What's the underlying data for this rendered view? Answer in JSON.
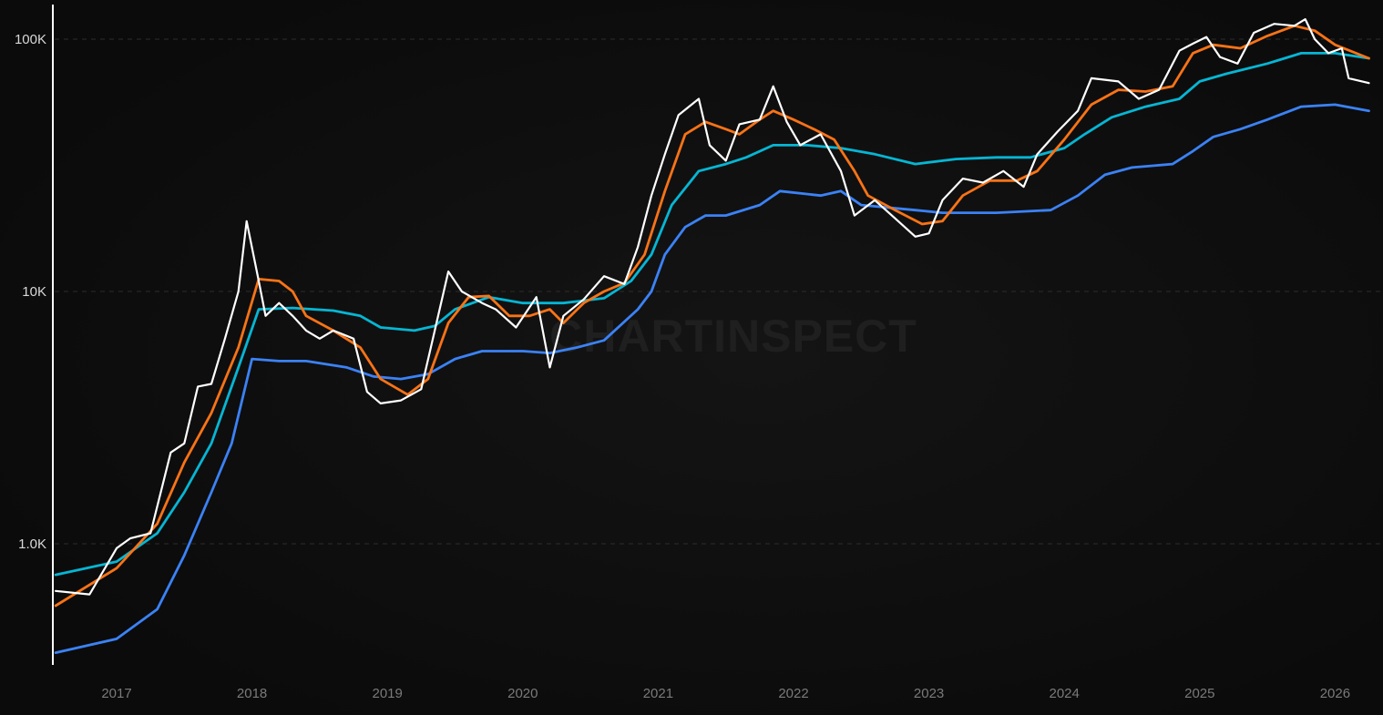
{
  "watermark": "CHARTINSPECT",
  "chart_data": {
    "type": "line",
    "title": "",
    "xlabel": "",
    "ylabel": "",
    "y_scale": "log",
    "ylim": [
      330,
      137000
    ],
    "xlim": [
      2016.53,
      2026.25
    ],
    "grid": "horizontal dashed at y ticks",
    "legend": "none",
    "y_ticks": [
      {
        "value": 1000,
        "label": "1.0K"
      },
      {
        "value": 10000,
        "label": "10K"
      },
      {
        "value": 100000,
        "label": "100K"
      }
    ],
    "x_ticks": [
      {
        "value": 2017,
        "label": "2017"
      },
      {
        "value": 2018,
        "label": "2018"
      },
      {
        "value": 2019,
        "label": "2019"
      },
      {
        "value": 2020,
        "label": "2020"
      },
      {
        "value": 2021,
        "label": "2021"
      },
      {
        "value": 2022,
        "label": "2022"
      },
      {
        "value": 2023,
        "label": "2023"
      },
      {
        "value": 2024,
        "label": "2024"
      },
      {
        "value": 2025,
        "label": "2025"
      },
      {
        "value": 2026,
        "label": "2026"
      }
    ],
    "series": [
      {
        "color": "#3b82f6",
        "points": [
          [
            2016.55,
            370
          ],
          [
            2017.0,
            420
          ],
          [
            2017.3,
            550
          ],
          [
            2017.5,
            900
          ],
          [
            2017.7,
            1600
          ],
          [
            2017.85,
            2500
          ],
          [
            2018.0,
            5400
          ],
          [
            2018.2,
            5300
          ],
          [
            2018.4,
            5300
          ],
          [
            2018.7,
            5000
          ],
          [
            2018.9,
            4600
          ],
          [
            2019.1,
            4500
          ],
          [
            2019.3,
            4700
          ],
          [
            2019.5,
            5400
          ],
          [
            2019.7,
            5800
          ],
          [
            2020.0,
            5800
          ],
          [
            2020.2,
            5700
          ],
          [
            2020.4,
            6000
          ],
          [
            2020.6,
            6400
          ],
          [
            2020.85,
            8500
          ],
          [
            2020.95,
            10000
          ],
          [
            2021.05,
            14000
          ],
          [
            2021.2,
            18000
          ],
          [
            2021.35,
            20000
          ],
          [
            2021.5,
            20000
          ],
          [
            2021.75,
            22000
          ],
          [
            2021.9,
            25000
          ],
          [
            2022.2,
            24000
          ],
          [
            2022.35,
            25000
          ],
          [
            2022.5,
            22000
          ],
          [
            2022.9,
            21000
          ],
          [
            2023.1,
            20500
          ],
          [
            2023.5,
            20500
          ],
          [
            2023.9,
            21000
          ],
          [
            2024.1,
            24000
          ],
          [
            2024.3,
            29000
          ],
          [
            2024.5,
            31000
          ],
          [
            2024.8,
            32000
          ],
          [
            2024.95,
            36000
          ],
          [
            2025.1,
            41000
          ],
          [
            2025.3,
            44000
          ],
          [
            2025.5,
            48000
          ],
          [
            2025.75,
            54000
          ],
          [
            2026.0,
            55000
          ],
          [
            2026.25,
            52000
          ]
        ]
      },
      {
        "color": "#06b6d4",
        "points": [
          [
            2016.55,
            753
          ],
          [
            2017.0,
            850
          ],
          [
            2017.3,
            1100
          ],
          [
            2017.5,
            1600
          ],
          [
            2017.7,
            2500
          ],
          [
            2017.9,
            5000
          ],
          [
            2018.05,
            8500
          ],
          [
            2018.3,
            8600
          ],
          [
            2018.6,
            8400
          ],
          [
            2018.8,
            8000
          ],
          [
            2018.95,
            7200
          ],
          [
            2019.2,
            7000
          ],
          [
            2019.35,
            7300
          ],
          [
            2019.5,
            8500
          ],
          [
            2019.75,
            9500
          ],
          [
            2020.0,
            9000
          ],
          [
            2020.3,
            9000
          ],
          [
            2020.6,
            9400
          ],
          [
            2020.8,
            11000
          ],
          [
            2020.95,
            14000
          ],
          [
            2021.1,
            22000
          ],
          [
            2021.3,
            30000
          ],
          [
            2021.5,
            32000
          ],
          [
            2021.65,
            34000
          ],
          [
            2021.85,
            38000
          ],
          [
            2022.1,
            38000
          ],
          [
            2022.35,
            37000
          ],
          [
            2022.6,
            35000
          ],
          [
            2022.9,
            32000
          ],
          [
            2023.2,
            33500
          ],
          [
            2023.5,
            34000
          ],
          [
            2023.75,
            34000
          ],
          [
            2024.0,
            37000
          ],
          [
            2024.15,
            42000
          ],
          [
            2024.35,
            49000
          ],
          [
            2024.6,
            54000
          ],
          [
            2024.85,
            58000
          ],
          [
            2025.0,
            68000
          ],
          [
            2025.2,
            73000
          ],
          [
            2025.5,
            80000
          ],
          [
            2025.75,
            88000
          ],
          [
            2026.0,
            88000
          ],
          [
            2026.25,
            84000
          ]
        ]
      },
      {
        "color": "#f97316",
        "points": [
          [
            2016.55,
            568
          ],
          [
            2017.0,
            800
          ],
          [
            2017.3,
            1200
          ],
          [
            2017.5,
            2100
          ],
          [
            2017.7,
            3300
          ],
          [
            2017.9,
            6000
          ],
          [
            2018.05,
            11200
          ],
          [
            2018.2,
            11000
          ],
          [
            2018.3,
            10000
          ],
          [
            2018.4,
            8000
          ],
          [
            2018.6,
            7000
          ],
          [
            2018.8,
            6000
          ],
          [
            2018.95,
            4500
          ],
          [
            2019.15,
            3900
          ],
          [
            2019.3,
            4500
          ],
          [
            2019.45,
            7500
          ],
          [
            2019.6,
            9500
          ],
          [
            2019.75,
            9600
          ],
          [
            2019.9,
            8000
          ],
          [
            2020.05,
            8000
          ],
          [
            2020.2,
            8500
          ],
          [
            2020.3,
            7500
          ],
          [
            2020.45,
            9000
          ],
          [
            2020.6,
            10000
          ],
          [
            2020.75,
            10800
          ],
          [
            2020.9,
            14000
          ],
          [
            2021.05,
            25000
          ],
          [
            2021.2,
            42000
          ],
          [
            2021.35,
            47000
          ],
          [
            2021.5,
            44000
          ],
          [
            2021.6,
            42000
          ],
          [
            2021.75,
            48000
          ],
          [
            2021.85,
            52000
          ],
          [
            2022.0,
            48000
          ],
          [
            2022.15,
            44000
          ],
          [
            2022.3,
            40000
          ],
          [
            2022.45,
            30000
          ],
          [
            2022.55,
            24000
          ],
          [
            2022.75,
            21000
          ],
          [
            2022.95,
            18500
          ],
          [
            2023.1,
            19000
          ],
          [
            2023.25,
            24000
          ],
          [
            2023.45,
            27500
          ],
          [
            2023.65,
            27500
          ],
          [
            2023.8,
            30000
          ],
          [
            2024.0,
            40000
          ],
          [
            2024.2,
            55000
          ],
          [
            2024.4,
            63000
          ],
          [
            2024.6,
            62000
          ],
          [
            2024.8,
            65000
          ],
          [
            2024.95,
            88000
          ],
          [
            2025.1,
            95000
          ],
          [
            2025.3,
            92000
          ],
          [
            2025.5,
            103000
          ],
          [
            2025.7,
            113000
          ],
          [
            2025.85,
            108000
          ],
          [
            2026.0,
            95000
          ],
          [
            2026.25,
            84000
          ]
        ]
      },
      {
        "color": "#ffffff",
        "points": [
          [
            2016.55,
            650
          ],
          [
            2016.8,
            630
          ],
          [
            2017.0,
            960
          ],
          [
            2017.1,
            1050
          ],
          [
            2017.25,
            1100
          ],
          [
            2017.4,
            2300
          ],
          [
            2017.5,
            2500
          ],
          [
            2017.6,
            4200
          ],
          [
            2017.7,
            4300
          ],
          [
            2017.8,
            6500
          ],
          [
            2017.9,
            10000
          ],
          [
            2017.96,
            19000
          ],
          [
            2018.05,
            11000
          ],
          [
            2018.1,
            8000
          ],
          [
            2018.2,
            9000
          ],
          [
            2018.3,
            8000
          ],
          [
            2018.4,
            7000
          ],
          [
            2018.5,
            6500
          ],
          [
            2018.6,
            7000
          ],
          [
            2018.75,
            6500
          ],
          [
            2018.85,
            4000
          ],
          [
            2018.95,
            3600
          ],
          [
            2019.1,
            3700
          ],
          [
            2019.25,
            4100
          ],
          [
            2019.35,
            7000
          ],
          [
            2019.45,
            12000
          ],
          [
            2019.55,
            10000
          ],
          [
            2019.7,
            9000
          ],
          [
            2019.8,
            8500
          ],
          [
            2019.95,
            7200
          ],
          [
            2020.1,
            9500
          ],
          [
            2020.2,
            5000
          ],
          [
            2020.3,
            8000
          ],
          [
            2020.45,
            9300
          ],
          [
            2020.6,
            11500
          ],
          [
            2020.75,
            10700
          ],
          [
            2020.85,
            15000
          ],
          [
            2020.95,
            24000
          ],
          [
            2021.05,
            35000
          ],
          [
            2021.15,
            50000
          ],
          [
            2021.3,
            58000
          ],
          [
            2021.38,
            38000
          ],
          [
            2021.5,
            33000
          ],
          [
            2021.6,
            46000
          ],
          [
            2021.75,
            48000
          ],
          [
            2021.85,
            65000
          ],
          [
            2021.95,
            47000
          ],
          [
            2022.05,
            38000
          ],
          [
            2022.2,
            42000
          ],
          [
            2022.35,
            30000
          ],
          [
            2022.45,
            20000
          ],
          [
            2022.6,
            23000
          ],
          [
            2022.75,
            19500
          ],
          [
            2022.9,
            16500
          ],
          [
            2023.0,
            17000
          ],
          [
            2023.1,
            23000
          ],
          [
            2023.25,
            28000
          ],
          [
            2023.4,
            27000
          ],
          [
            2023.55,
            30000
          ],
          [
            2023.7,
            26000
          ],
          [
            2023.8,
            35000
          ],
          [
            2023.95,
            43000
          ],
          [
            2024.1,
            52000
          ],
          [
            2024.2,
            70000
          ],
          [
            2024.4,
            68000
          ],
          [
            2024.55,
            58000
          ],
          [
            2024.7,
            63000
          ],
          [
            2024.85,
            90000
          ],
          [
            2024.95,
            96000
          ],
          [
            2025.05,
            102000
          ],
          [
            2025.15,
            85000
          ],
          [
            2025.28,
            80000
          ],
          [
            2025.4,
            106000
          ],
          [
            2025.55,
            115000
          ],
          [
            2025.7,
            113000
          ],
          [
            2025.78,
            120000
          ],
          [
            2025.85,
            100000
          ],
          [
            2025.95,
            88000
          ],
          [
            2026.05,
            92000
          ],
          [
            2026.1,
            70000
          ],
          [
            2026.2,
            68000
          ],
          [
            2026.25,
            67000
          ]
        ]
      }
    ]
  }
}
